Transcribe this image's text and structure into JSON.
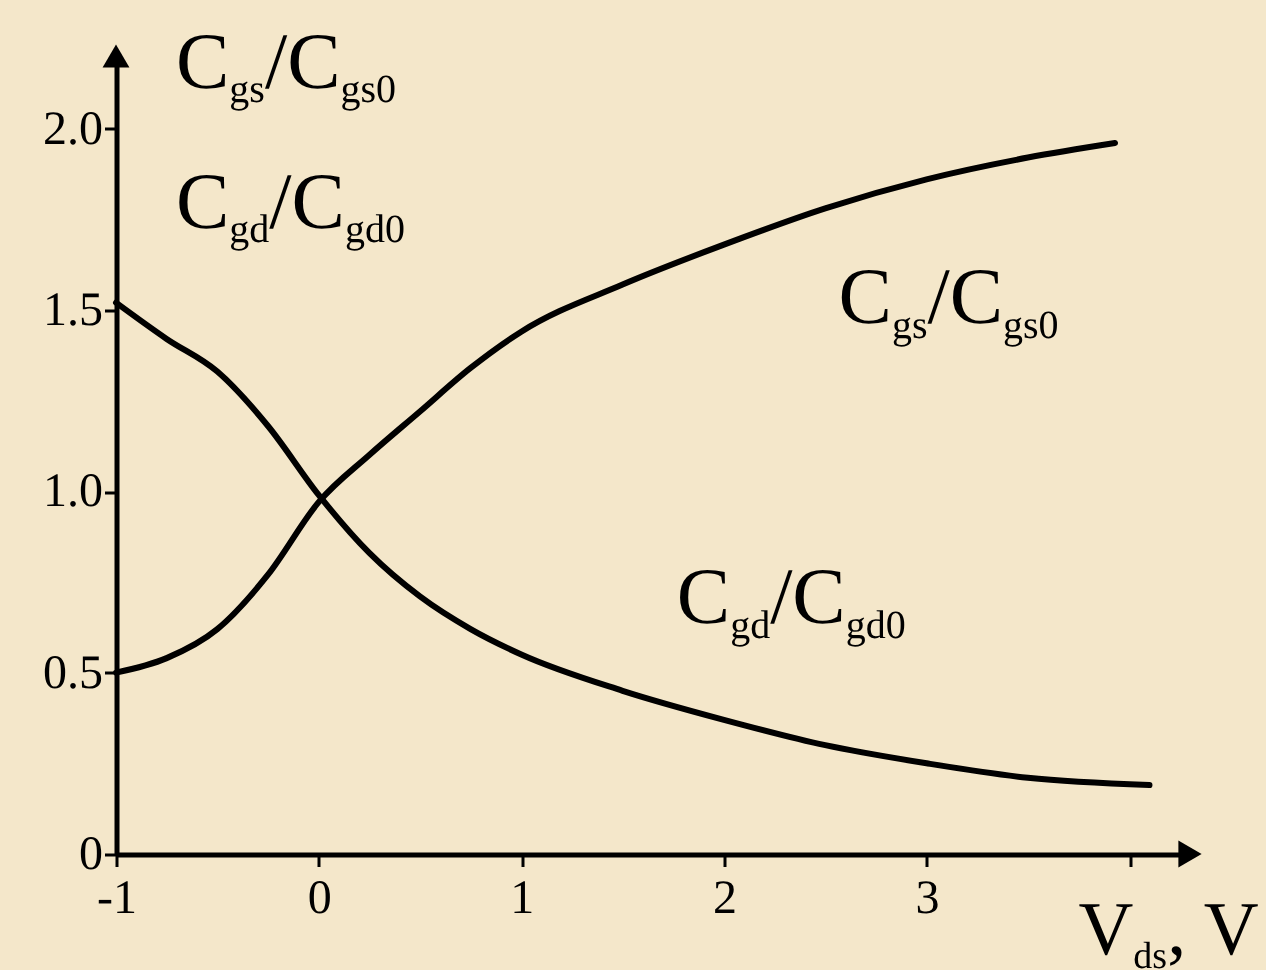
{
  "chart_data": {
    "type": "line",
    "ylabel": "C$_{gs}$/C$_{gs0}$\nC$_{gd}$/C$_{gd0}$",
    "xlabel": "V$_{ds}$, V",
    "xlim": [
      -1,
      4.3
    ],
    "ylim": [
      0,
      2.2
    ],
    "xticks": [
      -1,
      0,
      1,
      2,
      3,
      {
        "value": 4,
        "label": null
      }
    ],
    "yticks": [
      0,
      0.5,
      {
        "value": 1,
        "label": "1.0"
      },
      1.5,
      {
        "value": 2,
        "label": "2.0"
      }
    ],
    "grid": false,
    "series": [
      {
        "name": "C$_{gs}$/C$_{gs0}$",
        "color": "#000000",
        "x": [
          -1,
          -0.75,
          -0.5,
          -0.25,
          0,
          0.25,
          0.5,
          0.75,
          1.0,
          1.5,
          2.0,
          2.5,
          3.0,
          3.5,
          3.93
        ],
        "values": [
          0.5,
          0.54,
          0.62,
          0.77,
          0.97,
          1.1,
          1.22,
          1.34,
          1.44,
          1.57,
          1.68,
          1.78,
          1.86,
          1.92,
          1.96
        ]
      },
      {
        "name": "C$_{gd}$/C$_{gd0}$",
        "color": "#000000",
        "x": [
          -1,
          -0.75,
          -0.5,
          -0.25,
          0,
          0.25,
          0.5,
          0.75,
          1.0,
          1.5,
          2.0,
          2.5,
          3.0,
          3.5,
          4.1
        ],
        "values": [
          1.52,
          1.42,
          1.33,
          1.18,
          0.99,
          0.83,
          0.71,
          0.62,
          0.55,
          0.45,
          0.37,
          0.3,
          0.25,
          0.21,
          0.19
        ]
      }
    ]
  }
}
